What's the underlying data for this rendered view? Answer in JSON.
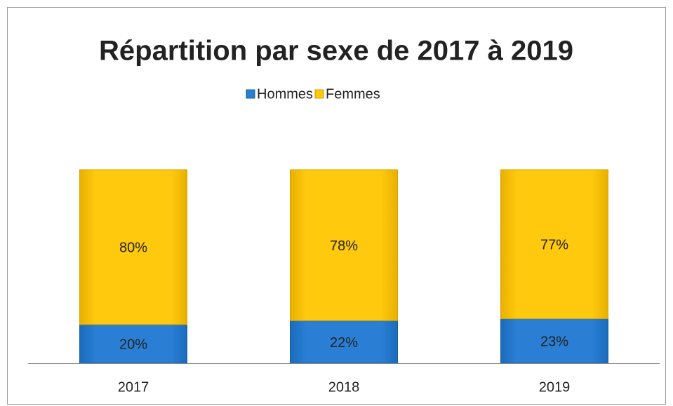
{
  "chart_data": {
    "type": "stacked_bar",
    "title": "Répartition par sexe de 2017 à 2019",
    "categories": [
      "2017",
      "2018",
      "2019"
    ],
    "series": [
      {
        "name": "Hommes",
        "color": "#2a7fd4",
        "values": [
          20,
          22,
          23
        ],
        "value_labels": [
          "20%",
          "22%",
          "23%"
        ]
      },
      {
        "name": "Femmes",
        "color": "#ffc90e",
        "values": [
          80,
          78,
          77
        ],
        "value_labels": [
          "80%",
          "78%",
          "77%"
        ]
      }
    ],
    "legend": "top"
  }
}
